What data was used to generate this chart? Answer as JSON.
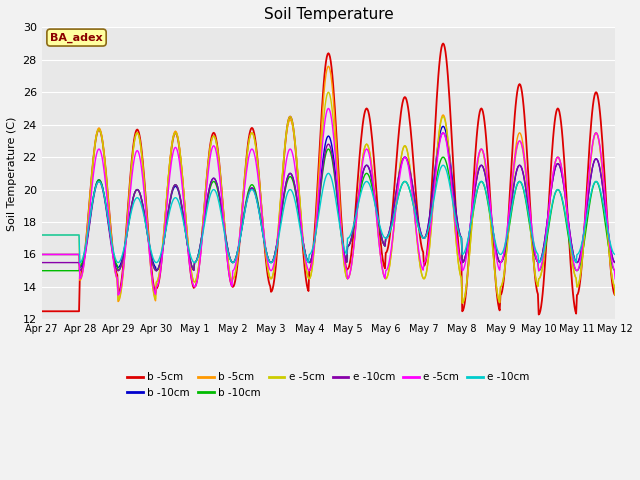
{
  "title": "Soil Temperature",
  "ylabel": "Soil Temperature (C)",
  "ylim": [
    12,
    30
  ],
  "fig_bg": "#f2f2f2",
  "plot_bg": "#e8e8e8",
  "x_labels": [
    "Apr 27",
    "Apr 28",
    "Apr 29",
    "Apr 30",
    "May 1",
    "May 2",
    "May 3",
    "May 4",
    "May 5",
    "May 6",
    "May 7",
    "May 8",
    "May 9",
    "May 10",
    "May 11",
    "May 12"
  ],
  "annotation_text": "BA_adex",
  "series": [
    {
      "label": "b -5cm",
      "color": "#dd0000"
    },
    {
      "label": "b -10cm",
      "color": "#0000cc"
    },
    {
      "label": "b -5cm",
      "color": "#ff9900"
    },
    {
      "label": "b -10cm",
      "color": "#00bb00"
    },
    {
      "label": "e -5cm",
      "color": "#cccc00"
    },
    {
      "label": "e -10cm",
      "color": "#8800aa"
    },
    {
      "label": "e -5cm",
      "color": "#ff00ff"
    },
    {
      "label": "e -10cm",
      "color": "#00cccc"
    }
  ],
  "red_peaks": [
    12.5,
    23.7,
    23.7,
    23.5,
    23.5,
    23.8,
    24.5,
    28.4,
    25.0,
    25.7,
    29.0,
    25.0,
    26.5,
    25.0,
    26.0,
    27.0
  ],
  "red_troughs": [
    12.5,
    14.7,
    13.6,
    13.9,
    14.0,
    14.0,
    13.7,
    15.0,
    15.1,
    16.1,
    15.3,
    12.5,
    13.5,
    12.3,
    13.5,
    13.5
  ],
  "blue_peaks": [
    16.0,
    20.6,
    20.0,
    20.2,
    20.7,
    20.1,
    21.0,
    23.3,
    21.5,
    22.0,
    23.9,
    21.5,
    21.5,
    21.6,
    21.9,
    21.9
  ],
  "blue_troughs": [
    16.0,
    15.2,
    15.2,
    15.0,
    15.5,
    15.5,
    15.5,
    15.5,
    16.5,
    17.0,
    17.0,
    15.5,
    15.5,
    15.5,
    15.5,
    15.5
  ],
  "orange_peaks": [
    16.0,
    23.8,
    23.5,
    23.6,
    23.3,
    23.5,
    24.3,
    27.6,
    22.8,
    22.7,
    24.6,
    22.5,
    23.5,
    22.0,
    23.5,
    23.5
  ],
  "orange_troughs": [
    16.0,
    14.4,
    13.1,
    14.3,
    14.3,
    14.5,
    14.5,
    14.5,
    14.5,
    14.5,
    14.5,
    13.0,
    14.0,
    14.5,
    14.0,
    13.5
  ],
  "green_peaks": [
    15.0,
    20.6,
    20.0,
    20.3,
    20.5,
    20.3,
    20.8,
    22.5,
    21.0,
    20.5,
    22.0,
    20.5,
    20.5,
    20.0,
    20.5,
    20.5
  ],
  "green_troughs": [
    15.0,
    15.3,
    15.0,
    15.0,
    15.5,
    15.5,
    15.5,
    15.5,
    16.5,
    17.0,
    17.0,
    15.5,
    15.5,
    15.0,
    15.0,
    15.0
  ],
  "yellow_peaks": [
    17.2,
    23.7,
    23.5,
    23.5,
    23.3,
    23.5,
    24.5,
    26.0,
    22.8,
    22.7,
    24.5,
    22.5,
    23.0,
    22.0,
    23.5,
    23.5
  ],
  "yellow_troughs": [
    17.2,
    14.5,
    13.2,
    14.3,
    14.3,
    14.5,
    14.5,
    14.5,
    14.5,
    14.5,
    14.5,
    13.0,
    14.0,
    14.5,
    14.0,
    13.5
  ],
  "purple_peaks": [
    15.5,
    20.5,
    20.0,
    20.3,
    20.7,
    20.1,
    21.0,
    22.8,
    21.5,
    22.0,
    23.5,
    21.5,
    21.5,
    21.6,
    21.9,
    21.9
  ],
  "purple_troughs": [
    15.5,
    15.0,
    15.0,
    15.0,
    15.5,
    15.5,
    15.5,
    15.5,
    16.5,
    17.0,
    17.0,
    15.5,
    15.5,
    15.5,
    15.5,
    15.5
  ],
  "magenta_peaks": [
    16.0,
    22.5,
    22.4,
    22.6,
    22.7,
    22.5,
    22.5,
    25.0,
    22.5,
    22.0,
    23.5,
    22.5,
    23.0,
    22.0,
    23.5,
    23.5
  ],
  "magenta_troughs": [
    16.0,
    14.5,
    13.5,
    14.0,
    14.0,
    15.0,
    15.0,
    15.0,
    14.5,
    15.0,
    15.5,
    15.0,
    15.5,
    15.0,
    15.0,
    14.5
  ],
  "cyan_peaks": [
    17.2,
    20.5,
    19.5,
    19.5,
    20.0,
    20.0,
    20.0,
    21.0,
    20.5,
    20.5,
    21.5,
    20.5,
    20.5,
    20.0,
    20.5,
    20.5
  ],
  "cyan_troughs": [
    17.2,
    15.5,
    15.5,
    15.5,
    15.5,
    15.5,
    15.5,
    16.0,
    17.0,
    17.0,
    17.0,
    16.0,
    16.0,
    15.5,
    16.0,
    16.0
  ]
}
